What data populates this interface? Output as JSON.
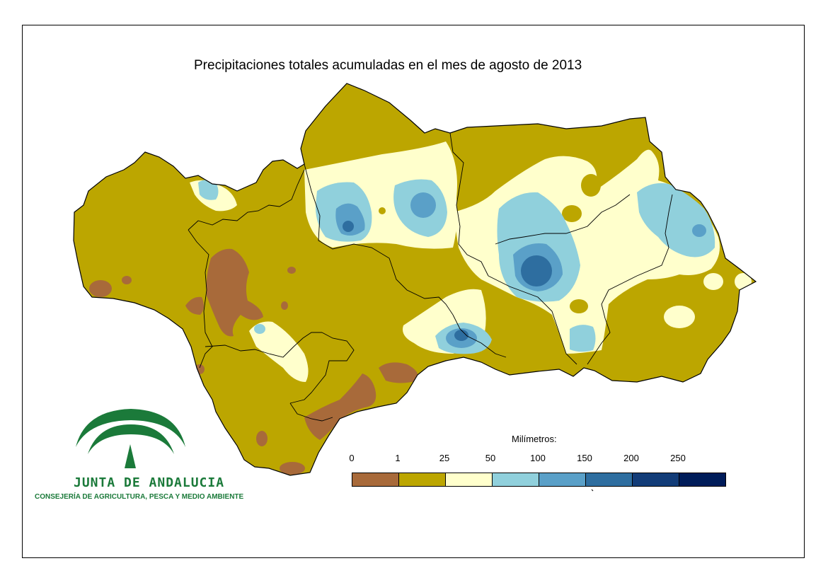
{
  "map": {
    "title": "Precipitaciones totales acumuladas en el mes de agosto de 2013"
  },
  "legend": {
    "title": "Milímetros:",
    "ticks": [
      "0",
      "1",
      "25",
      "50",
      "100",
      "150",
      "200",
      "250"
    ],
    "colors": [
      "#a86a3a",
      "#bca600",
      "#ffffcc",
      "#90d0dc",
      "#5aa0c8",
      "#2e6ea0",
      "#123c78",
      "#001c5a"
    ]
  },
  "branding": {
    "organization": "JUNTA DE ANDALUCIA",
    "department": "CONSEJERÍA DE AGRICULTURA, PESCA Y MEDIO AMBIENTE",
    "color": "#1b7a3a"
  }
}
